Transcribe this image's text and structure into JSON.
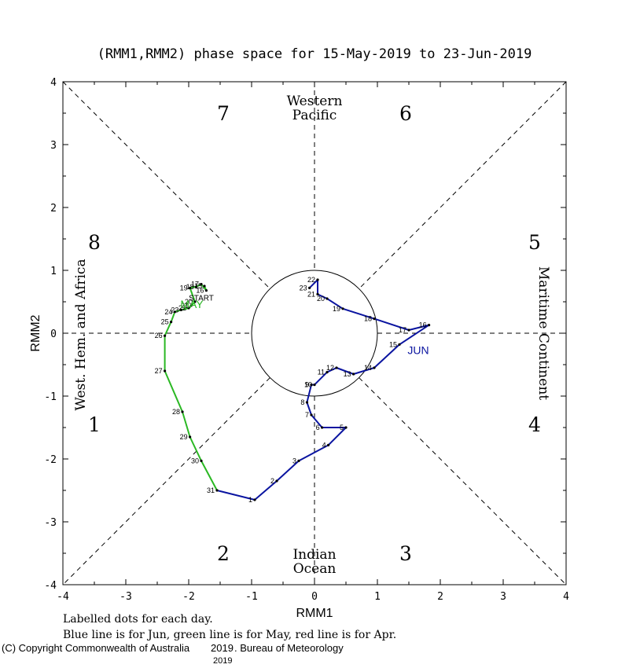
{
  "chart_data": {
    "type": "line",
    "title": "(RMM1,RMM2) phase space for 15-May-2019 to 23-Jun-2019",
    "xlabel": "RMM1",
    "ylabel": "RMM2",
    "xlim": [
      -4,
      4
    ],
    "ylim": [
      -4,
      4
    ],
    "xticks": [
      "-4",
      "-3",
      "-2",
      "-1",
      "0",
      "1",
      "2",
      "3",
      "4"
    ],
    "yticks": [
      "4",
      "3",
      "2",
      "1",
      "0",
      "-1",
      "-2",
      "-3",
      "-4"
    ],
    "phase_numbers": [
      {
        "label": "7",
        "x": -1.45,
        "y": 3.5
      },
      {
        "label": "6",
        "x": 1.45,
        "y": 3.5
      },
      {
        "label": "8",
        "x": -3.5,
        "y": 1.45
      },
      {
        "label": "5",
        "x": 3.5,
        "y": 1.45
      },
      {
        "label": "1",
        "x": -3.5,
        "y": -1.45
      },
      {
        "label": "4",
        "x": 3.5,
        "y": -1.45
      },
      {
        "label": "2",
        "x": -1.45,
        "y": -3.5
      },
      {
        "label": "3",
        "x": 1.45,
        "y": -3.5
      }
    ],
    "regions": {
      "top": [
        "Western",
        "Pacific"
      ],
      "bottom": [
        "Indian",
        "Ocean"
      ],
      "left": "West. Hem. and Africa",
      "right": "Maritime Continent"
    },
    "series": [
      {
        "name": "May",
        "color": "#2ab823",
        "points": [
          {
            "label": "15",
            "x": -1.75,
            "y": 0.75
          },
          {
            "label": "16",
            "x": -1.72,
            "y": 0.68
          },
          {
            "label": "17",
            "x": -1.8,
            "y": 0.78
          },
          {
            "label": "18",
            "x": -1.88,
            "y": 0.74
          },
          {
            "label": "19",
            "x": -1.98,
            "y": 0.72
          },
          {
            "label": "20",
            "x": -1.9,
            "y": 0.5
          },
          {
            "label": "21",
            "x": -1.96,
            "y": 0.44
          },
          {
            "label": "22",
            "x": -2.0,
            "y": 0.4
          },
          {
            "label": "23",
            "x": -2.12,
            "y": 0.37
          },
          {
            "label": "24",
            "x": -2.22,
            "y": 0.34
          },
          {
            "label": "25",
            "x": -2.28,
            "y": 0.18
          },
          {
            "label": "26",
            "x": -2.38,
            "y": -0.04
          },
          {
            "label": "27",
            "x": -2.38,
            "y": -0.6
          },
          {
            "label": "28",
            "x": -2.1,
            "y": -1.25
          },
          {
            "label": "29",
            "x": -1.98,
            "y": -1.65
          },
          {
            "label": "30",
            "x": -1.8,
            "y": -2.03
          },
          {
            "label": "31",
            "x": -1.55,
            "y": -2.5
          }
        ]
      },
      {
        "name": "Jun",
        "color": "#0a14a0",
        "points": [
          {
            "label": "1",
            "x": -0.95,
            "y": -2.65
          },
          {
            "label": "2",
            "x": -0.6,
            "y": -2.35
          },
          {
            "label": "3",
            "x": -0.25,
            "y": -2.03
          },
          {
            "label": "4",
            "x": 0.22,
            "y": -1.78
          },
          {
            "label": "5",
            "x": 0.5,
            "y": -1.5
          },
          {
            "label": "6",
            "x": 0.12,
            "y": -1.5
          },
          {
            "label": "7",
            "x": -0.05,
            "y": -1.3
          },
          {
            "label": "8",
            "x": -0.12,
            "y": -1.1
          },
          {
            "label": "9",
            "x": -0.05,
            "y": -0.82
          },
          {
            "label": "10",
            "x": 0.0,
            "y": -0.82
          },
          {
            "label": "11",
            "x": 0.2,
            "y": -0.62
          },
          {
            "label": "12",
            "x": 0.35,
            "y": -0.55
          },
          {
            "label": "13",
            "x": 0.62,
            "y": -0.65
          },
          {
            "label": "14",
            "x": 0.95,
            "y": -0.55
          },
          {
            "label": "15",
            "x": 1.35,
            "y": -0.18
          },
          {
            "label": "16",
            "x": 1.82,
            "y": 0.13
          },
          {
            "label": "17",
            "x": 1.5,
            "y": 0.05
          },
          {
            "label": "18",
            "x": 0.95,
            "y": 0.23
          },
          {
            "label": "19",
            "x": 0.45,
            "y": 0.39
          },
          {
            "label": "20",
            "x": 0.2,
            "y": 0.55
          },
          {
            "label": "21",
            "x": 0.05,
            "y": 0.62
          },
          {
            "label": "22",
            "x": 0.05,
            "y": 0.85
          },
          {
            "label": "23",
            "x": -0.08,
            "y": 0.72
          }
        ]
      }
    ],
    "annotations": [
      {
        "label": "START",
        "x": -1.8,
        "y": 0.57,
        "color": "#000000"
      },
      {
        "label": "MAY",
        "x": -1.95,
        "y": 0.45,
        "color": "#2ab823"
      },
      {
        "label": "JUN",
        "x": 1.65,
        "y": -0.28,
        "color": "#0a14a0"
      }
    ]
  },
  "footer": {
    "line1": "Labelled dots for each day.",
    "line2": "Blue line is for Jun, green line is for May, red line is for Apr.",
    "copyright": "(C) Copyright Commonwealth of Australia",
    "copyright_year": "2019",
    "bureau": ". Bureau of Meteorology",
    "year": "2019"
  }
}
